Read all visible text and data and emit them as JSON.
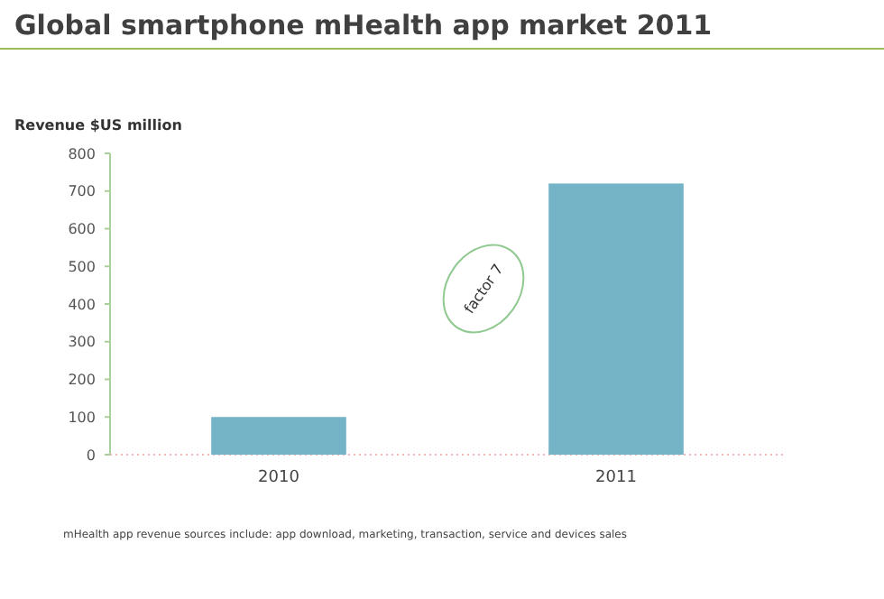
{
  "chart_data": {
    "type": "bar",
    "title": "Global smartphone mHealth app market 2011",
    "ylabel": "Revenue $US million",
    "categories": [
      "2010",
      "2011"
    ],
    "values": [
      100,
      720
    ],
    "color": "#74b4c6",
    "ylim": [
      0,
      800
    ],
    "yticks": [
      0,
      100,
      200,
      300,
      400,
      500,
      600,
      700,
      800
    ],
    "annotations": [
      "factor 7",
      "mHealth app revenue sources include: app download, marketing, transaction, service and devices sales"
    ]
  }
}
